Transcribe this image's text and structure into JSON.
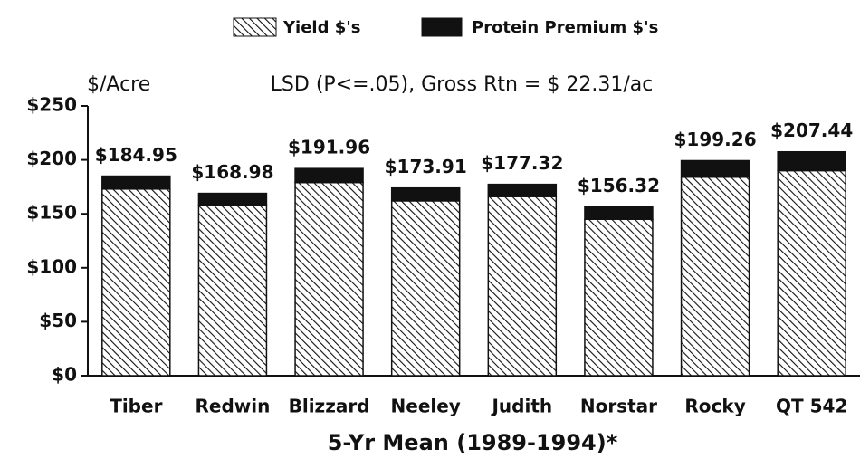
{
  "chart_data": {
    "type": "stacked_bar",
    "annotation": "LSD (P<=.05), Gross Rtn = $ 22.31/ac",
    "y_label": "$/Acre",
    "x_label": "5-Yr Mean (1989-1994)*",
    "categories": [
      "Tiber",
      "Redwin",
      "Blizzard",
      "Neeley",
      "Judith",
      "Norstar",
      "Rocky",
      "QT 542"
    ],
    "series": [
      {
        "name": "Yield $'s",
        "color": "#111111",
        "pattern": "hatch",
        "values": [
          173,
          158,
          179,
          162,
          166,
          145,
          184,
          190
        ]
      },
      {
        "name": "Protein Premium $'s",
        "color": "#111111",
        "pattern": "solid",
        "values": [
          11.95,
          10.98,
          12.96,
          11.91,
          11.32,
          11.32,
          15.26,
          17.44
        ]
      }
    ],
    "totals": [
      184.95,
      168.98,
      191.96,
      173.91,
      177.32,
      156.32,
      199.26,
      207.44
    ],
    "total_labels": [
      "$184.95",
      "$168.98",
      "$191.96",
      "$173.91",
      "$177.32",
      "$156.32",
      "$199.26",
      "$207.44"
    ],
    "ylim": [
      0,
      250
    ],
    "yticks": [
      {
        "value": 0,
        "label": "$0"
      },
      {
        "value": 50,
        "label": "$50"
      },
      {
        "value": 100,
        "label": "$100"
      },
      {
        "value": 150,
        "label": "$150"
      },
      {
        "value": 200,
        "label": "$200"
      },
      {
        "value": 250,
        "label": "$250"
      }
    ]
  }
}
